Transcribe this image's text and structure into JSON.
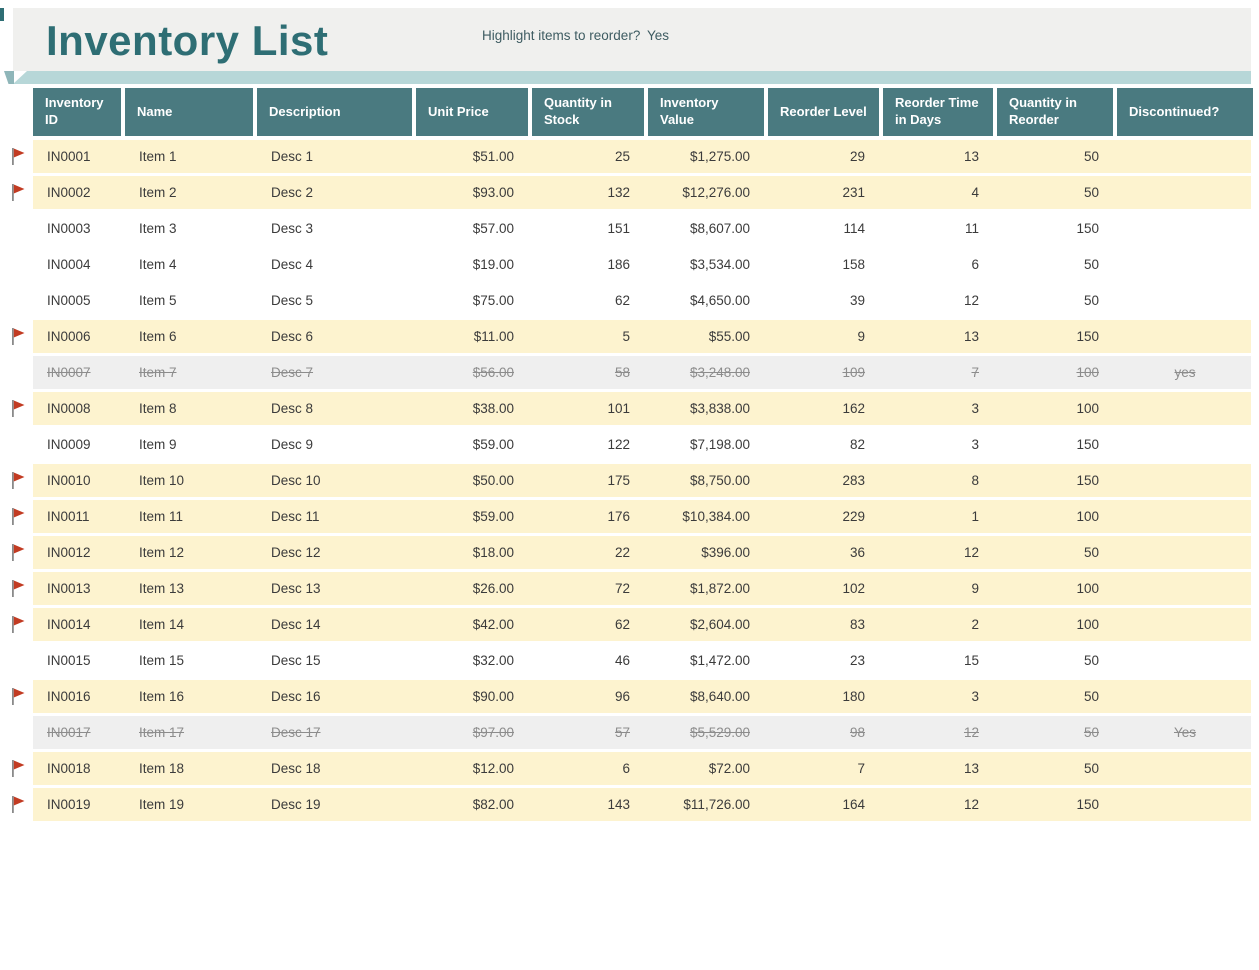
{
  "header": {
    "title": "Inventory List",
    "reorder_prompt": "Highlight items to reorder?",
    "reorder_value": "Yes"
  },
  "icons": {
    "row_flag": "reorder-flag"
  },
  "colors": {
    "accent_header": "#4A7A80",
    "title_text": "#2E6E74",
    "ribbon": "#B7D7D8",
    "ribbon_fold": "#8FB6B9",
    "banner_bg": "#F0F0EE",
    "reorder_highlight": "#FDF3CF",
    "discontinued_bg": "#EFEFEF",
    "discontinued_text": "#8C8C8C",
    "flag_red": "#C23B22"
  },
  "table": {
    "columns": [
      {
        "label": "Inventory ID",
        "align": "left"
      },
      {
        "label": "Name",
        "align": "left"
      },
      {
        "label": "Description",
        "align": "left"
      },
      {
        "label": "Unit Price",
        "align": "right"
      },
      {
        "label": "Quantity in Stock",
        "align": "right"
      },
      {
        "label": "Inventory Value",
        "align": "right"
      },
      {
        "label": "Reorder Level",
        "align": "right"
      },
      {
        "label": "Reorder Time in Days",
        "align": "right"
      },
      {
        "label": "Quantity in Reorder",
        "align": "right"
      },
      {
        "label": "Discontinued?",
        "align": "center"
      }
    ],
    "rows": [
      {
        "id": "IN0001",
        "name": "Item 1",
        "desc": "Desc 1",
        "unit_price": "$51.00",
        "qty_stock": "25",
        "inv_value": "$1,275.00",
        "reorder_level": "29",
        "reorder_time": "13",
        "qty_reorder": "50",
        "discontinued": "",
        "state": "reorder",
        "flag": true
      },
      {
        "id": "IN0002",
        "name": "Item 2",
        "desc": "Desc 2",
        "unit_price": "$93.00",
        "qty_stock": "132",
        "inv_value": "$12,276.00",
        "reorder_level": "231",
        "reorder_time": "4",
        "qty_reorder": "50",
        "discontinued": "",
        "state": "reorder",
        "flag": true
      },
      {
        "id": "IN0003",
        "name": "Item 3",
        "desc": "Desc 3",
        "unit_price": "$57.00",
        "qty_stock": "151",
        "inv_value": "$8,607.00",
        "reorder_level": "114",
        "reorder_time": "11",
        "qty_reorder": "150",
        "discontinued": "",
        "state": "normal",
        "flag": false
      },
      {
        "id": "IN0004",
        "name": "Item 4",
        "desc": "Desc 4",
        "unit_price": "$19.00",
        "qty_stock": "186",
        "inv_value": "$3,534.00",
        "reorder_level": "158",
        "reorder_time": "6",
        "qty_reorder": "50",
        "discontinued": "",
        "state": "normal",
        "flag": false
      },
      {
        "id": "IN0005",
        "name": "Item 5",
        "desc": "Desc 5",
        "unit_price": "$75.00",
        "qty_stock": "62",
        "inv_value": "$4,650.00",
        "reorder_level": "39",
        "reorder_time": "12",
        "qty_reorder": "50",
        "discontinued": "",
        "state": "normal",
        "flag": false
      },
      {
        "id": "IN0006",
        "name": "Item 6",
        "desc": "Desc 6",
        "unit_price": "$11.00",
        "qty_stock": "5",
        "inv_value": "$55.00",
        "reorder_level": "9",
        "reorder_time": "13",
        "qty_reorder": "150",
        "discontinued": "",
        "state": "reorder",
        "flag": true
      },
      {
        "id": "IN0007",
        "name": "Item 7",
        "desc": "Desc 7",
        "unit_price": "$56.00",
        "qty_stock": "58",
        "inv_value": "$3,248.00",
        "reorder_level": "109",
        "reorder_time": "7",
        "qty_reorder": "100",
        "discontinued": "yes",
        "state": "discontinued",
        "flag": false
      },
      {
        "id": "IN0008",
        "name": "Item 8",
        "desc": "Desc 8",
        "unit_price": "$38.00",
        "qty_stock": "101",
        "inv_value": "$3,838.00",
        "reorder_level": "162",
        "reorder_time": "3",
        "qty_reorder": "100",
        "discontinued": "",
        "state": "reorder",
        "flag": true
      },
      {
        "id": "IN0009",
        "name": "Item 9",
        "desc": "Desc 9",
        "unit_price": "$59.00",
        "qty_stock": "122",
        "inv_value": "$7,198.00",
        "reorder_level": "82",
        "reorder_time": "3",
        "qty_reorder": "150",
        "discontinued": "",
        "state": "normal",
        "flag": false
      },
      {
        "id": "IN0010",
        "name": "Item 10",
        "desc": "Desc 10",
        "unit_price": "$50.00",
        "qty_stock": "175",
        "inv_value": "$8,750.00",
        "reorder_level": "283",
        "reorder_time": "8",
        "qty_reorder": "150",
        "discontinued": "",
        "state": "reorder",
        "flag": true
      },
      {
        "id": "IN0011",
        "name": "Item 11",
        "desc": "Desc 11",
        "unit_price": "$59.00",
        "qty_stock": "176",
        "inv_value": "$10,384.00",
        "reorder_level": "229",
        "reorder_time": "1",
        "qty_reorder": "100",
        "discontinued": "",
        "state": "reorder",
        "flag": true
      },
      {
        "id": "IN0012",
        "name": "Item 12",
        "desc": "Desc 12",
        "unit_price": "$18.00",
        "qty_stock": "22",
        "inv_value": "$396.00",
        "reorder_level": "36",
        "reorder_time": "12",
        "qty_reorder": "50",
        "discontinued": "",
        "state": "reorder",
        "flag": true
      },
      {
        "id": "IN0013",
        "name": "Item 13",
        "desc": "Desc 13",
        "unit_price": "$26.00",
        "qty_stock": "72",
        "inv_value": "$1,872.00",
        "reorder_level": "102",
        "reorder_time": "9",
        "qty_reorder": "100",
        "discontinued": "",
        "state": "reorder",
        "flag": true
      },
      {
        "id": "IN0014",
        "name": "Item 14",
        "desc": "Desc 14",
        "unit_price": "$42.00",
        "qty_stock": "62",
        "inv_value": "$2,604.00",
        "reorder_level": "83",
        "reorder_time": "2",
        "qty_reorder": "100",
        "discontinued": "",
        "state": "reorder",
        "flag": true
      },
      {
        "id": "IN0015",
        "name": "Item 15",
        "desc": "Desc 15",
        "unit_price": "$32.00",
        "qty_stock": "46",
        "inv_value": "$1,472.00",
        "reorder_level": "23",
        "reorder_time": "15",
        "qty_reorder": "50",
        "discontinued": "",
        "state": "normal",
        "flag": false
      },
      {
        "id": "IN0016",
        "name": "Item 16",
        "desc": "Desc 16",
        "unit_price": "$90.00",
        "qty_stock": "96",
        "inv_value": "$8,640.00",
        "reorder_level": "180",
        "reorder_time": "3",
        "qty_reorder": "50",
        "discontinued": "",
        "state": "reorder",
        "flag": true
      },
      {
        "id": "IN0017",
        "name": "Item 17",
        "desc": "Desc 17",
        "unit_price": "$97.00",
        "qty_stock": "57",
        "inv_value": "$5,529.00",
        "reorder_level": "98",
        "reorder_time": "12",
        "qty_reorder": "50",
        "discontinued": "Yes",
        "state": "discontinued",
        "flag": false
      },
      {
        "id": "IN0018",
        "name": "Item 18",
        "desc": "Desc 18",
        "unit_price": "$12.00",
        "qty_stock": "6",
        "inv_value": "$72.00",
        "reorder_level": "7",
        "reorder_time": "13",
        "qty_reorder": "50",
        "discontinued": "",
        "state": "reorder",
        "flag": true
      },
      {
        "id": "IN0019",
        "name": "Item 19",
        "desc": "Desc 19",
        "unit_price": "$82.00",
        "qty_stock": "143",
        "inv_value": "$11,726.00",
        "reorder_level": "164",
        "reorder_time": "12",
        "qty_reorder": "150",
        "discontinued": "",
        "state": "reorder",
        "flag": true
      }
    ]
  }
}
